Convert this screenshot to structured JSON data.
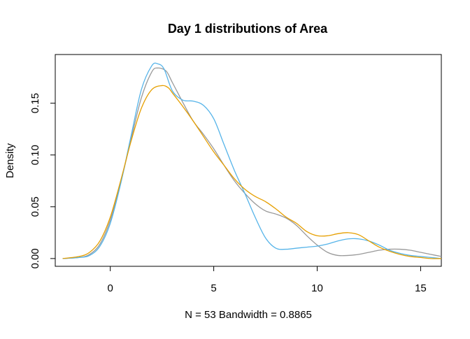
{
  "chart_data": {
    "type": "line",
    "title": "Day 1 distributions of Area",
    "xlabel": "N = 53   Bandwidth = 0.8865",
    "ylabel": "Density",
    "xlim": [
      -2.66,
      16.0
    ],
    "ylim": [
      -0.0075,
      0.197
    ],
    "xticks": [
      0,
      5,
      10,
      15
    ],
    "xtick_labels": [
      "0",
      "5",
      "10",
      "15"
    ],
    "yticks": [
      0.0,
      0.05,
      0.1,
      0.15
    ],
    "ytick_labels": [
      "0.00",
      "0.05",
      "0.10",
      "0.15"
    ],
    "grid": false,
    "legend": null,
    "series": [
      {
        "color": "#999999",
        "x": [
          -2.3,
          -1.5,
          -1.0,
          -0.5,
          0.0,
          0.5,
          1.0,
          1.5,
          2.0,
          2.3,
          2.7,
          3.0,
          3.5,
          4.0,
          4.5,
          5.0,
          5.5,
          6.0,
          6.5,
          7.0,
          7.5,
          8.0,
          8.5,
          9.0,
          9.5,
          10.0,
          10.5,
          11.0,
          11.5,
          12.0,
          12.5,
          13.0,
          13.5,
          14.0,
          14.5,
          15.0,
          15.5,
          16.0
        ],
        "y": [
          0.0,
          0.001,
          0.004,
          0.014,
          0.037,
          0.073,
          0.115,
          0.155,
          0.18,
          0.184,
          0.181,
          0.17,
          0.151,
          0.133,
          0.12,
          0.106,
          0.09,
          0.075,
          0.063,
          0.053,
          0.046,
          0.043,
          0.039,
          0.032,
          0.022,
          0.013,
          0.006,
          0.003,
          0.003,
          0.004,
          0.006,
          0.008,
          0.009,
          0.009,
          0.008,
          0.006,
          0.004,
          0.002
        ]
      },
      {
        "color": "#56B4E9",
        "x": [
          -2.3,
          -1.5,
          -1.0,
          -0.5,
          0.0,
          0.5,
          1.0,
          1.5,
          2.0,
          2.3,
          2.6,
          3.0,
          3.5,
          4.0,
          4.5,
          5.0,
          5.5,
          6.0,
          6.5,
          7.0,
          7.5,
          8.0,
          8.5,
          9.0,
          9.5,
          10.0,
          10.5,
          11.0,
          11.5,
          12.0,
          12.5,
          13.0,
          13.5,
          14.0,
          14.5,
          15.0,
          15.5,
          16.0
        ],
        "y": [
          0.0,
          0.001,
          0.003,
          0.012,
          0.034,
          0.072,
          0.118,
          0.163,
          0.186,
          0.188,
          0.183,
          0.162,
          0.153,
          0.152,
          0.148,
          0.135,
          0.11,
          0.085,
          0.063,
          0.04,
          0.02,
          0.01,
          0.009,
          0.01,
          0.011,
          0.012,
          0.014,
          0.017,
          0.019,
          0.019,
          0.017,
          0.013,
          0.008,
          0.005,
          0.003,
          0.002,
          0.001,
          0.0
        ]
      },
      {
        "color": "#E69F00",
        "x": [
          -2.3,
          -1.5,
          -1.0,
          -0.5,
          0.0,
          0.5,
          1.0,
          1.5,
          2.0,
          2.5,
          2.8,
          3.0,
          3.5,
          4.0,
          4.5,
          5.0,
          5.5,
          6.0,
          6.5,
          7.0,
          7.5,
          8.0,
          8.5,
          9.0,
          9.5,
          10.0,
          10.5,
          11.0,
          11.5,
          12.0,
          12.5,
          13.0,
          13.5,
          14.0,
          14.5,
          15.0,
          15.5,
          16.0
        ],
        "y": [
          0.0,
          0.002,
          0.006,
          0.017,
          0.04,
          0.075,
          0.113,
          0.145,
          0.163,
          0.167,
          0.165,
          0.16,
          0.147,
          0.133,
          0.118,
          0.103,
          0.09,
          0.077,
          0.067,
          0.06,
          0.055,
          0.048,
          0.04,
          0.034,
          0.026,
          0.022,
          0.022,
          0.024,
          0.025,
          0.023,
          0.017,
          0.011,
          0.007,
          0.004,
          0.002,
          0.001,
          0.0,
          0.0
        ]
      }
    ]
  }
}
